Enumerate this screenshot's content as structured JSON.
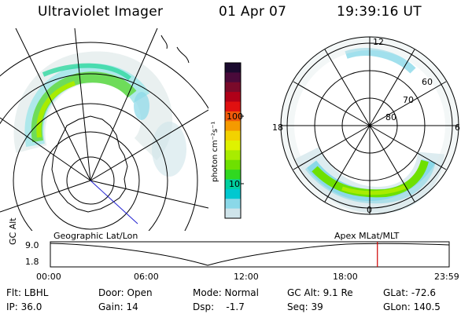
{
  "header": {
    "title": "Ultraviolet Imager",
    "date": "01 Apr 07",
    "time": "19:39:16 UT"
  },
  "colorbar": {
    "unit_label": "photon cm⁻²s⁻¹",
    "ticks": [
      "100",
      "10"
    ],
    "colors": [
      "#1a0a2e",
      "#4a0a3a",
      "#7a0a2a",
      "#b00018",
      "#e01010",
      "#f05a0a",
      "#f59a00",
      "#f2d200",
      "#dff200",
      "#a8ec00",
      "#6ee000",
      "#30d820",
      "#00d0a0",
      "#00c8d0",
      "#8ad8e8",
      "#cfe4ea"
    ]
  },
  "left_map": {
    "caption": "Geographic Lat/Lon"
  },
  "right_map": {
    "caption": "Apex MLat/MLT",
    "mlt_labels": {
      "top": "12",
      "left": "18",
      "right": "6",
      "bottom": "0"
    },
    "lat_labels": [
      "60",
      "70",
      "80"
    ]
  },
  "timeline": {
    "axis_label": "GC Alt",
    "y_labels": [
      "9.0",
      "1.8"
    ],
    "x_labels": [
      "00:00",
      "06:00",
      "12:00",
      "18:00",
      "23:59"
    ],
    "current_fraction": 0.82
  },
  "info": {
    "filter": "Flt: LBHL",
    "ip": "IP: 36.0",
    "door": "Door: Open",
    "gain": "Gain: 14",
    "mode": "Mode: Normal",
    "dsp": "Dsp:    -1.7",
    "gcalt": "GC Alt: 9.1 Re",
    "seq": "Seq: 39",
    "glat": "GLat: -72.6",
    "glon": "GLon: 140.5"
  }
}
